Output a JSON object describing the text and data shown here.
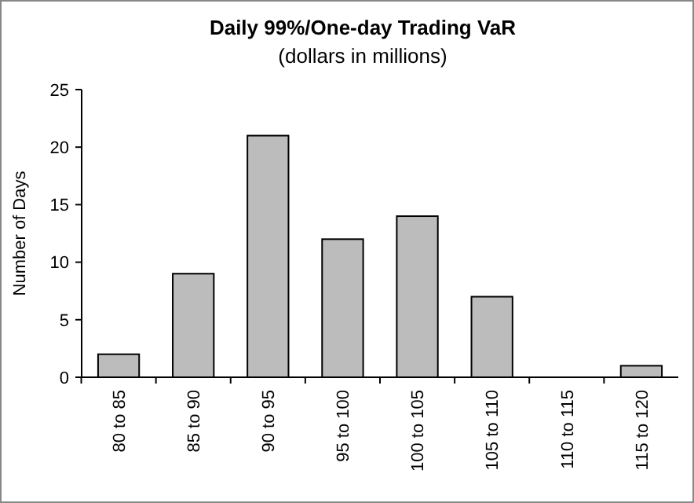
{
  "chart_data": {
    "type": "bar",
    "title": "Daily 99%/One-day Trading VaR",
    "subtitle": "(dollars in millions)",
    "ylabel": "Number of Days",
    "categories": [
      "80 to 85",
      "85 to 90",
      "90 to 95",
      "95 to 100",
      "100 to 105",
      "105 to 110",
      "110 to 115",
      "115 to 120"
    ],
    "values": [
      2,
      9,
      21,
      12,
      14,
      7,
      0,
      1
    ],
    "color": "#bcbcbc",
    "ylim": [
      0,
      25
    ],
    "yticks": [
      0,
      5,
      10,
      15,
      20,
      25
    ],
    "grid": false
  }
}
